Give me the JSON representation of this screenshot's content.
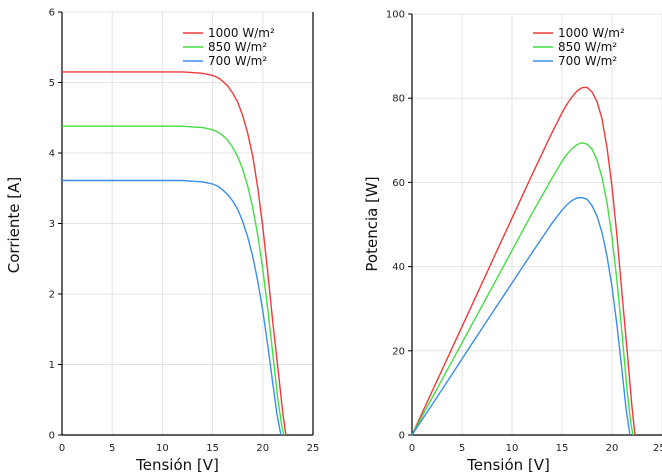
{
  "chart_data": [
    {
      "type": "line",
      "xlabel": "Tensión [V]",
      "ylabel": "Corriente [A]",
      "xlim": [
        0,
        25
      ],
      "ylim": [
        0,
        6
      ],
      "xticks": [
        0,
        5,
        10,
        15,
        20,
        25
      ],
      "yticks": [
        0,
        1,
        2,
        3,
        4,
        5,
        6
      ],
      "grid": true,
      "legend_position": "top-right",
      "series": [
        {
          "name": "1000 W/m²",
          "color": "#ee3a3a",
          "x": [
            0,
            2,
            4,
            6,
            8,
            10,
            12,
            13,
            14,
            15,
            15.5,
            16,
            16.5,
            17,
            17.5,
            18,
            18.5,
            19,
            19.5,
            20,
            20.5,
            21,
            21.5,
            22,
            22.3
          ],
          "y": [
            5.15,
            5.15,
            5.15,
            5.15,
            5.15,
            5.15,
            5.15,
            5.14,
            5.13,
            5.1,
            5.07,
            5.02,
            4.95,
            4.85,
            4.72,
            4.53,
            4.28,
            3.95,
            3.5,
            2.95,
            2.3,
            1.6,
            0.95,
            0.3,
            0
          ]
        },
        {
          "name": "850 W/m²",
          "color": "#44dd44",
          "x": [
            0,
            2,
            4,
            6,
            8,
            10,
            12,
            13,
            14,
            15,
            15.5,
            16,
            16.5,
            17,
            17.5,
            18,
            18.5,
            19,
            19.5,
            20,
            20.5,
            21,
            21.5,
            21.9,
            22.1
          ],
          "y": [
            4.38,
            4.38,
            4.38,
            4.38,
            4.38,
            4.38,
            4.38,
            4.37,
            4.36,
            4.33,
            4.3,
            4.25,
            4.18,
            4.08,
            3.95,
            3.77,
            3.53,
            3.22,
            2.83,
            2.35,
            1.78,
            1.15,
            0.5,
            0.12,
            0
          ]
        },
        {
          "name": "700 W/m²",
          "color": "#3a8ee8",
          "x": [
            0,
            2,
            4,
            6,
            8,
            10,
            12,
            13,
            14,
            15,
            15.5,
            16,
            16.5,
            17,
            17.5,
            18,
            18.5,
            19,
            19.5,
            20,
            20.5,
            21,
            21.4,
            21.8
          ],
          "y": [
            3.61,
            3.61,
            3.61,
            3.61,
            3.61,
            3.61,
            3.61,
            3.6,
            3.59,
            3.56,
            3.53,
            3.48,
            3.41,
            3.32,
            3.2,
            3.03,
            2.81,
            2.53,
            2.18,
            1.76,
            1.27,
            0.73,
            0.3,
            0
          ]
        }
      ]
    },
    {
      "type": "line",
      "xlabel": "Tensión [V]",
      "ylabel": "Potencia [W]",
      "xlim": [
        0,
        25
      ],
      "ylim": [
        0,
        100
      ],
      "xticks": [
        0,
        5,
        10,
        15,
        20,
        25
      ],
      "yticks": [
        0,
        20,
        40,
        60,
        80,
        100
      ],
      "grid": true,
      "legend_position": "top-right",
      "series": [
        {
          "name": "1000 W/m²",
          "color": "#ee3a3a",
          "x": [
            0,
            2,
            4,
            6,
            8,
            10,
            12,
            13,
            14,
            15,
            15.5,
            16,
            16.5,
            17,
            17.5,
            18,
            18.5,
            19,
            19.5,
            20,
            20.5,
            21,
            21.5,
            22,
            22.3
          ],
          "y": [
            0,
            10.3,
            20.6,
            30.9,
            41.2,
            51.5,
            61.8,
            66.8,
            71.8,
            76.5,
            78.6,
            80.3,
            81.7,
            82.5,
            82.6,
            81.5,
            79.2,
            75.1,
            68.3,
            59,
            47.2,
            33.6,
            20.4,
            6.6,
            0
          ]
        },
        {
          "name": "850 W/m²",
          "color": "#44dd44",
          "x": [
            0,
            2,
            4,
            6,
            8,
            10,
            12,
            13,
            14,
            15,
            15.5,
            16,
            16.5,
            17,
            17.5,
            18,
            18.5,
            19,
            19.5,
            20,
            20.5,
            21,
            21.5,
            21.9,
            22.1
          ],
          "y": [
            0,
            8.8,
            17.5,
            26.3,
            35,
            43.8,
            52.6,
            56.8,
            61,
            65,
            66.7,
            68,
            69,
            69.4,
            69.1,
            67.9,
            65.3,
            61.2,
            55.2,
            47,
            36.5,
            24.2,
            10.8,
            2.6,
            0
          ]
        },
        {
          "name": "700 W/m²",
          "color": "#3a8ee8",
          "x": [
            0,
            2,
            4,
            6,
            8,
            10,
            12,
            13,
            14,
            15,
            15.5,
            16,
            16.5,
            17,
            17.5,
            18,
            18.5,
            19,
            19.5,
            20,
            20.5,
            21,
            21.4,
            21.8
          ],
          "y": [
            0,
            7.2,
            14.4,
            21.7,
            28.9,
            36.1,
            43.3,
            46.8,
            50.3,
            53.4,
            54.7,
            55.7,
            56.3,
            56.4,
            56,
            54.5,
            52,
            48.1,
            42.5,
            35.2,
            26,
            15.3,
            6.4,
            0
          ]
        }
      ]
    }
  ]
}
